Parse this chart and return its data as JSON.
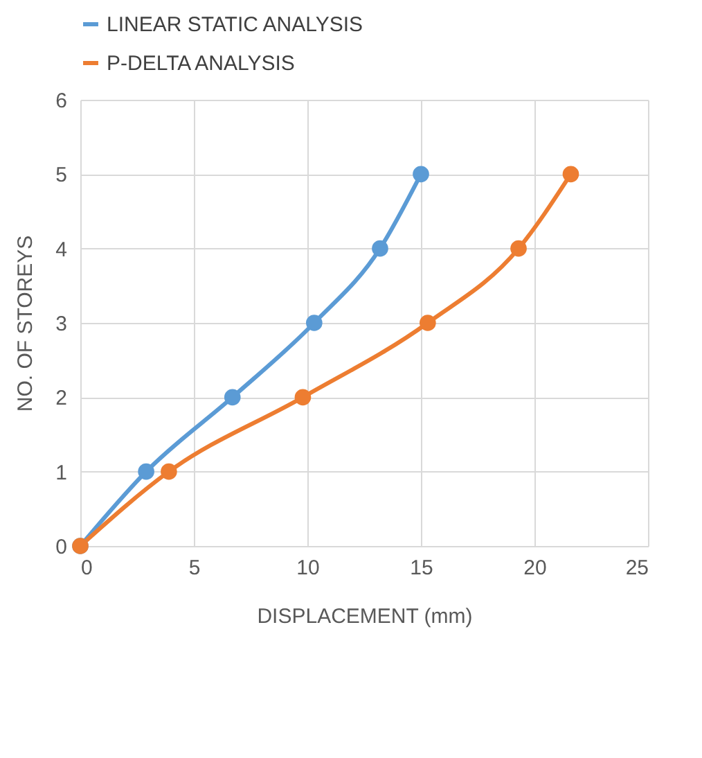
{
  "chart_data": {
    "type": "line",
    "xlabel": "DISPLACEMENT  (mm)",
    "ylabel": "NO. OF STOREYS",
    "series": [
      {
        "name": "LINEAR STATIC ANALYSIS",
        "color": "#5b9bd5",
        "x": [
          0,
          2.9,
          6.7,
          10.3,
          13.2,
          15.0
        ],
        "values": [
          0,
          1,
          2,
          3,
          4,
          5
        ]
      },
      {
        "name": "P-DELTA ANALYSIS",
        "color": "#ed7d31",
        "x": [
          0,
          3.9,
          9.8,
          15.3,
          19.3,
          21.6
        ],
        "values": [
          0,
          1,
          2,
          3,
          4,
          5
        ]
      }
    ],
    "xlim": [
      0,
      25
    ],
    "xticks": [
      0,
      5,
      10,
      15,
      20,
      25
    ],
    "ylim": [
      0,
      6
    ],
    "yticks": [
      0,
      1,
      2,
      3,
      4,
      5,
      6
    ],
    "grid": true,
    "legend": "top",
    "marker": "circle",
    "line_style": "solid"
  }
}
